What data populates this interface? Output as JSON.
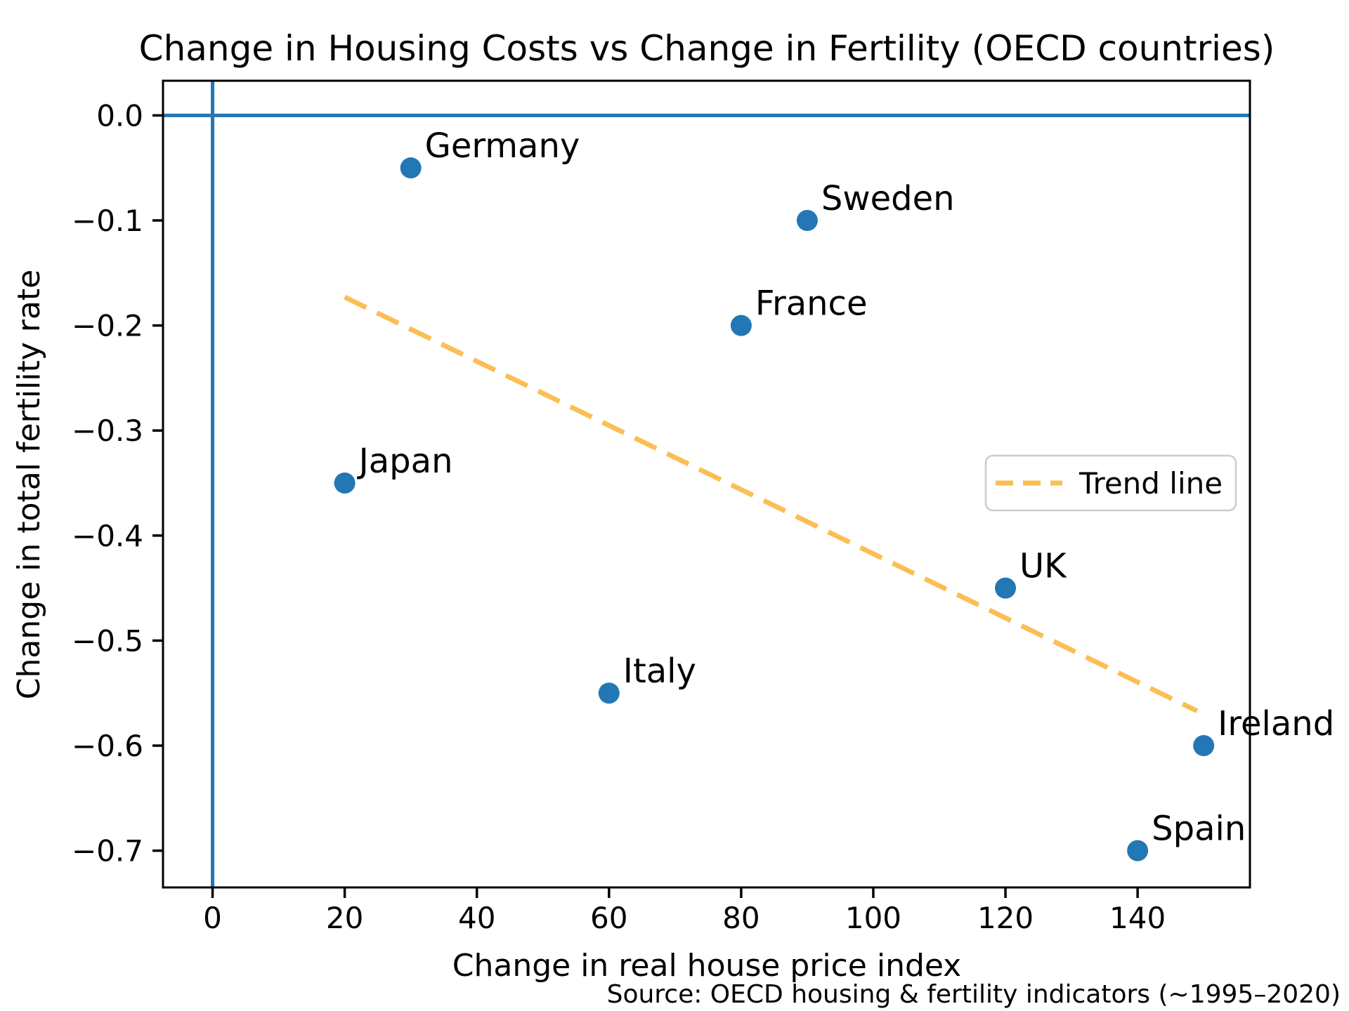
{
  "chart_data": {
    "type": "scatter",
    "title": "Change in Housing Costs vs Change in Fertility (OECD countries)",
    "xlabel": "Change in real house price index",
    "ylabel": "Change in total fertility rate",
    "source_note": "Source: OECD housing & fertility indicators (~1995–2020)",
    "xlim": [
      -7.5,
      157
    ],
    "ylim": [
      -0.735,
      0.033
    ],
    "xticks": [
      0,
      20,
      40,
      60,
      80,
      100,
      120,
      140
    ],
    "xtick_labels": [
      "0",
      "20",
      "40",
      "60",
      "80",
      "100",
      "120",
      "140"
    ],
    "yticks": [
      0.0,
      -0.1,
      -0.2,
      -0.3,
      -0.4,
      -0.5,
      -0.6,
      -0.7
    ],
    "ytick_labels": [
      "0.0",
      "−0.1",
      "−0.2",
      "−0.3",
      "−0.4",
      "−0.5",
      "−0.6",
      "−0.7"
    ],
    "grid": false,
    "points": [
      {
        "label": "Germany",
        "x": 30,
        "y": -0.05
      },
      {
        "label": "Sweden",
        "x": 90,
        "y": -0.1
      },
      {
        "label": "France",
        "x": 80,
        "y": -0.2
      },
      {
        "label": "Japan",
        "x": 20,
        "y": -0.35
      },
      {
        "label": "UK",
        "x": 120,
        "y": -0.45
      },
      {
        "label": "Italy",
        "x": 60,
        "y": -0.55
      },
      {
        "label": "Ireland",
        "x": 150,
        "y": -0.6
      },
      {
        "label": "Spain",
        "x": 140,
        "y": -0.7
      }
    ],
    "zero_lines": {
      "x": 0,
      "y": 0
    },
    "trend_line": {
      "x1": 20,
      "y1": -0.173,
      "x2": 149,
      "y2": -0.567
    },
    "legend": {
      "label": "Trend line",
      "position": "center right"
    },
    "colors": {
      "point": "#2277b4",
      "zero_line": "#2277b4",
      "trend": "#fbbe55",
      "frame": "#000000",
      "legend_border": "#cccccc",
      "background": "#ffffff"
    }
  }
}
